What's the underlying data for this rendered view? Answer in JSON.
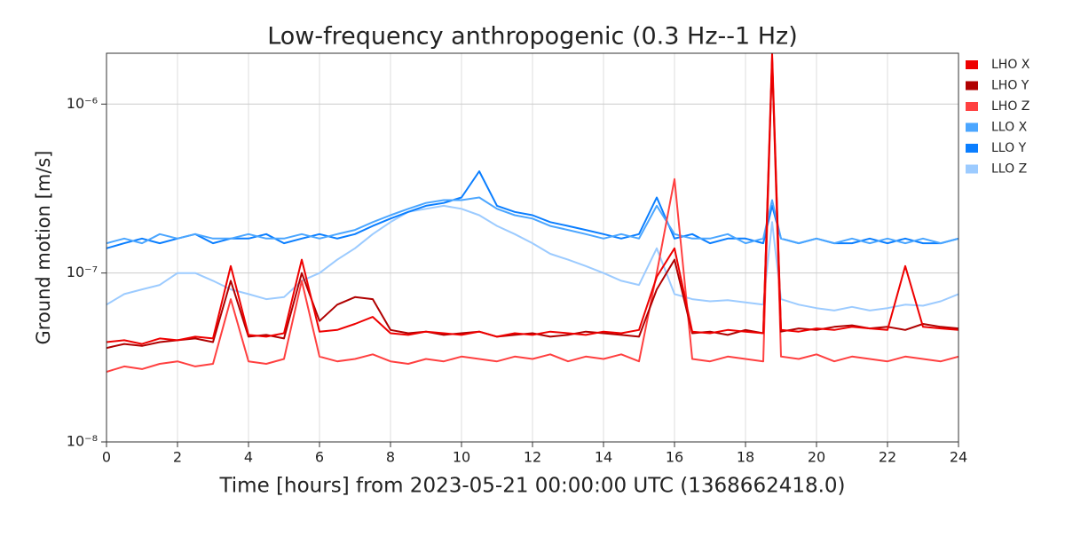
{
  "chart_data": {
    "type": "line",
    "title": "Low-frequency anthropogenic (0.3 Hz--1 Hz)",
    "xlabel": "Time [hours] from 2023-05-21 00:00:00 UTC (1368662418.0)",
    "ylabel": "Ground motion [m/s]",
    "yscale": "log",
    "grid": true,
    "legend": "right",
    "xlim": [
      0,
      24
    ],
    "xticks": [
      0,
      2,
      4,
      6,
      8,
      10,
      12,
      14,
      16,
      18,
      20,
      22,
      24
    ],
    "ylim": [
      1e-08,
      2e-06
    ],
    "yticks": [
      {
        "value": 1e-08,
        "label": "10⁻⁸"
      },
      {
        "value": 1e-07,
        "label": "10⁻⁷"
      },
      {
        "value": 1e-06,
        "label": "10⁻⁶"
      }
    ],
    "x": [
      0,
      0.5,
      1,
      1.5,
      2,
      2.5,
      3,
      3.5,
      4,
      4.5,
      5,
      5.5,
      6,
      6.5,
      7,
      7.5,
      8,
      8.5,
      9,
      9.5,
      10,
      10.5,
      11,
      11.5,
      12,
      12.5,
      13,
      13.5,
      14,
      14.5,
      15,
      15.5,
      16,
      16.5,
      17,
      17.5,
      18,
      18.5,
      18.75,
      19,
      19.5,
      20,
      20.5,
      21,
      21.5,
      22,
      22.5,
      23,
      23.5,
      24
    ],
    "series": [
      {
        "name": "LHO X",
        "color": "#ee0000",
        "values": [
          3.9e-08,
          4e-08,
          3.8e-08,
          4.1e-08,
          4e-08,
          4.2e-08,
          4.1e-08,
          1.1e-07,
          4.3e-08,
          4.2e-08,
          4.4e-08,
          1.2e-07,
          4.5e-08,
          4.6e-08,
          5e-08,
          5.5e-08,
          4.4e-08,
          4.3e-08,
          4.5e-08,
          4.4e-08,
          4.3e-08,
          4.5e-08,
          4.2e-08,
          4.4e-08,
          4.3e-08,
          4.5e-08,
          4.4e-08,
          4.3e-08,
          4.5e-08,
          4.4e-08,
          4.6e-08,
          9.5e-08,
          1.4e-07,
          4.5e-08,
          4.4e-08,
          4.6e-08,
          4.5e-08,
          4.4e-08,
          2e-06,
          4.6e-08,
          4.5e-08,
          4.7e-08,
          4.6e-08,
          4.8e-08,
          4.7e-08,
          4.6e-08,
          1.1e-07,
          4.8e-08,
          4.7e-08,
          4.6e-08
        ]
      },
      {
        "name": "LHO Y",
        "color": "#b00000",
        "values": [
          3.6e-08,
          3.8e-08,
          3.7e-08,
          3.9e-08,
          4e-08,
          4.1e-08,
          3.9e-08,
          9e-08,
          4.2e-08,
          4.3e-08,
          4.1e-08,
          1e-07,
          5.2e-08,
          6.5e-08,
          7.2e-08,
          7e-08,
          4.6e-08,
          4.4e-08,
          4.5e-08,
          4.3e-08,
          4.4e-08,
          4.5e-08,
          4.2e-08,
          4.3e-08,
          4.4e-08,
          4.2e-08,
          4.3e-08,
          4.5e-08,
          4.4e-08,
          4.3e-08,
          4.2e-08,
          8e-08,
          1.2e-07,
          4.4e-08,
          4.5e-08,
          4.3e-08,
          4.6e-08,
          4.4e-08,
          1.8e-06,
          4.5e-08,
          4.7e-08,
          4.6e-08,
          4.8e-08,
          4.9e-08,
          4.7e-08,
          4.8e-08,
          4.6e-08,
          5e-08,
          4.8e-08,
          4.7e-08
        ]
      },
      {
        "name": "LHO Z",
        "color": "#ff4040",
        "values": [
          2.6e-08,
          2.8e-08,
          2.7e-08,
          2.9e-08,
          3e-08,
          2.8e-08,
          2.9e-08,
          7e-08,
          3e-08,
          2.9e-08,
          3.1e-08,
          9e-08,
          3.2e-08,
          3e-08,
          3.1e-08,
          3.3e-08,
          3e-08,
          2.9e-08,
          3.1e-08,
          3e-08,
          3.2e-08,
          3.1e-08,
          3e-08,
          3.2e-08,
          3.1e-08,
          3.3e-08,
          3e-08,
          3.2e-08,
          3.1e-08,
          3.3e-08,
          3e-08,
          1e-07,
          3.6e-07,
          3.1e-08,
          3e-08,
          3.2e-08,
          3.1e-08,
          3e-08,
          1.9e-06,
          3.2e-08,
          3.1e-08,
          3.3e-08,
          3e-08,
          3.2e-08,
          3.1e-08,
          3e-08,
          3.2e-08,
          3.1e-08,
          3e-08,
          3.2e-08
        ]
      },
      {
        "name": "LLO X",
        "color": "#4ba6ff",
        "values": [
          1.5e-07,
          1.6e-07,
          1.5e-07,
          1.7e-07,
          1.6e-07,
          1.7e-07,
          1.6e-07,
          1.6e-07,
          1.7e-07,
          1.6e-07,
          1.6e-07,
          1.7e-07,
          1.6e-07,
          1.7e-07,
          1.8e-07,
          2e-07,
          2.2e-07,
          2.4e-07,
          2.6e-07,
          2.7e-07,
          2.7e-07,
          2.8e-07,
          2.4e-07,
          2.2e-07,
          2.1e-07,
          1.9e-07,
          1.8e-07,
          1.7e-07,
          1.6e-07,
          1.7e-07,
          1.6e-07,
          2.5e-07,
          1.7e-07,
          1.6e-07,
          1.6e-07,
          1.7e-07,
          1.5e-07,
          1.6e-07,
          2.7e-07,
          1.6e-07,
          1.5e-07,
          1.6e-07,
          1.5e-07,
          1.6e-07,
          1.5e-07,
          1.6e-07,
          1.5e-07,
          1.6e-07,
          1.5e-07,
          1.6e-07
        ]
      },
      {
        "name": "LLO Y",
        "color": "#0a7eff",
        "values": [
          1.4e-07,
          1.5e-07,
          1.6e-07,
          1.5e-07,
          1.6e-07,
          1.7e-07,
          1.5e-07,
          1.6e-07,
          1.6e-07,
          1.7e-07,
          1.5e-07,
          1.6e-07,
          1.7e-07,
          1.6e-07,
          1.7e-07,
          1.9e-07,
          2.1e-07,
          2.3e-07,
          2.5e-07,
          2.6e-07,
          2.8e-07,
          4e-07,
          2.5e-07,
          2.3e-07,
          2.2e-07,
          2e-07,
          1.9e-07,
          1.8e-07,
          1.7e-07,
          1.6e-07,
          1.7e-07,
          2.8e-07,
          1.6e-07,
          1.7e-07,
          1.5e-07,
          1.6e-07,
          1.6e-07,
          1.5e-07,
          2.5e-07,
          1.6e-07,
          1.5e-07,
          1.6e-07,
          1.5e-07,
          1.5e-07,
          1.6e-07,
          1.5e-07,
          1.6e-07,
          1.5e-07,
          1.5e-07,
          1.6e-07
        ]
      },
      {
        "name": "LLO Z",
        "color": "#9ccbff",
        "values": [
          6.5e-08,
          7.5e-08,
          8e-08,
          8.5e-08,
          1e-07,
          1e-07,
          9e-08,
          8e-08,
          7.5e-08,
          7e-08,
          7.2e-08,
          9e-08,
          1e-07,
          1.2e-07,
          1.4e-07,
          1.7e-07,
          2e-07,
          2.3e-07,
          2.4e-07,
          2.5e-07,
          2.4e-07,
          2.2e-07,
          1.9e-07,
          1.7e-07,
          1.5e-07,
          1.3e-07,
          1.2e-07,
          1.1e-07,
          1e-07,
          9e-08,
          8.5e-08,
          1.4e-07,
          7.5e-08,
          7e-08,
          6.8e-08,
          6.9e-08,
          6.7e-08,
          6.5e-08,
          2e-07,
          7e-08,
          6.5e-08,
          6.2e-08,
          6e-08,
          6.3e-08,
          6e-08,
          6.2e-08,
          6.5e-08,
          6.4e-08,
          6.8e-08,
          7.5e-08
        ]
      }
    ]
  }
}
